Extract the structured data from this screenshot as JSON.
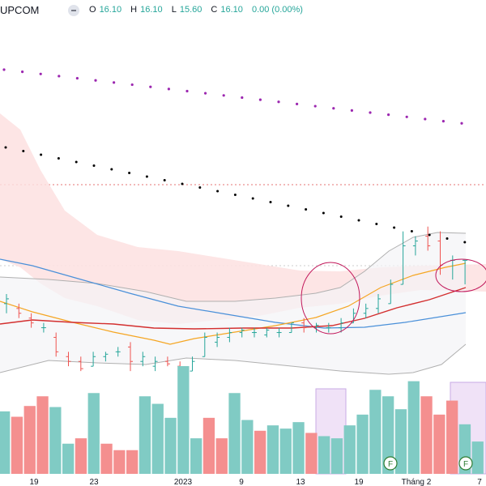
{
  "header": {
    "exchange": "UPCOM",
    "open_label": "O",
    "open": "16.10",
    "high_label": "H",
    "high": "16.10",
    "low_label": "L",
    "low": "15.60",
    "close_label": "C",
    "close": "16.10",
    "change": "0.00 (0.00%)"
  },
  "colors": {
    "up": "#26a69a",
    "down": "#ef5350",
    "vol_up": "#80cbc4",
    "vol_down": "#f48f8f",
    "purple_dots": "#9c27b0",
    "black_dots": "#000000",
    "blue_ma": "#4a90d9",
    "orange_ma": "#f5a623",
    "red_ma": "#d32f2f",
    "cloud": "#fde0e0",
    "band": "#b0b0b0",
    "highlight": "#ead7f5",
    "circle": "#c2185b",
    "marker": "#2e7d32"
  },
  "chart_data": {
    "type": "candlestick",
    "x_labels": [
      "19",
      "23",
      "2023",
      "9",
      "13",
      "19",
      "Tháng 2",
      "7"
    ],
    "marker_labels": [
      "F",
      "F"
    ],
    "y_range": [
      13.6,
      21.0
    ],
    "candles": [
      {
        "o": 15.2,
        "h": 15.4,
        "l": 15.0,
        "c": 15.3
      },
      {
        "o": 15.1,
        "h": 15.2,
        "l": 14.9,
        "c": 15.0
      },
      {
        "o": 14.9,
        "h": 15.0,
        "l": 14.7,
        "c": 14.8
      },
      {
        "o": 14.7,
        "h": 14.8,
        "l": 14.6,
        "c": 14.7
      },
      {
        "o": 14.5,
        "h": 14.6,
        "l": 14.1,
        "c": 14.2
      },
      {
        "o": 14.1,
        "h": 14.2,
        "l": 13.9,
        "c": 14.0
      },
      {
        "o": 14.0,
        "h": 14.1,
        "l": 13.8,
        "c": 13.85
      },
      {
        "o": 13.9,
        "h": 14.2,
        "l": 13.9,
        "c": 14.1
      },
      {
        "o": 14.1,
        "h": 14.2,
        "l": 14.0,
        "c": 14.15
      },
      {
        "o": 14.2,
        "h": 14.3,
        "l": 14.1,
        "c": 14.2
      },
      {
        "o": 14.3,
        "h": 14.4,
        "l": 13.8,
        "c": 14.0
      },
      {
        "o": 14.0,
        "h": 14.2,
        "l": 13.9,
        "c": 14.1
      },
      {
        "o": 13.9,
        "h": 14.1,
        "l": 13.8,
        "c": 14.0
      },
      {
        "o": 14.0,
        "h": 14.1,
        "l": 13.9,
        "c": 13.95
      },
      {
        "o": 13.9,
        "h": 14.0,
        "l": 13.8,
        "c": 13.85
      },
      {
        "o": 13.8,
        "h": 14.1,
        "l": 13.8,
        "c": 14.0
      },
      {
        "o": 14.1,
        "h": 14.6,
        "l": 14.1,
        "c": 14.5
      },
      {
        "o": 14.4,
        "h": 14.6,
        "l": 14.3,
        "c": 14.5
      },
      {
        "o": 14.5,
        "h": 14.7,
        "l": 14.4,
        "c": 14.6
      },
      {
        "o": 14.6,
        "h": 14.7,
        "l": 14.5,
        "c": 14.65
      },
      {
        "o": 14.6,
        "h": 14.7,
        "l": 14.5,
        "c": 14.6
      },
      {
        "o": 14.55,
        "h": 14.7,
        "l": 14.5,
        "c": 14.65
      },
      {
        "o": 14.6,
        "h": 14.7,
        "l": 14.5,
        "c": 14.6
      },
      {
        "o": 14.6,
        "h": 14.8,
        "l": 14.6,
        "c": 14.8
      },
      {
        "o": 14.8,
        "h": 14.9,
        "l": 14.6,
        "c": 14.7
      },
      {
        "o": 14.7,
        "h": 14.8,
        "l": 14.6,
        "c": 14.75
      },
      {
        "o": 14.7,
        "h": 14.8,
        "l": 14.6,
        "c": 14.7
      },
      {
        "o": 14.7,
        "h": 14.9,
        "l": 14.6,
        "c": 14.8
      },
      {
        "o": 14.8,
        "h": 15.1,
        "l": 14.8,
        "c": 15.0
      },
      {
        "o": 15.0,
        "h": 15.2,
        "l": 14.9,
        "c": 15.1
      },
      {
        "o": 15.1,
        "h": 15.4,
        "l": 15.0,
        "c": 15.3
      },
      {
        "o": 15.2,
        "h": 15.7,
        "l": 15.2,
        "c": 15.6
      },
      {
        "o": 15.6,
        "h": 16.7,
        "l": 15.6,
        "c": 16.4
      },
      {
        "o": 16.4,
        "h": 16.6,
        "l": 16.2,
        "c": 16.5
      },
      {
        "o": 16.6,
        "h": 16.8,
        "l": 16.3,
        "c": 16.4
      },
      {
        "o": 16.5,
        "h": 16.7,
        "l": 15.8,
        "c": 16.0
      },
      {
        "o": 16.1,
        "h": 16.2,
        "l": 15.7,
        "c": 16.1
      },
      {
        "o": 16.1,
        "h": 16.1,
        "l": 15.6,
        "c": 16.1
      }
    ],
    "volume": [
      {
        "v": 0.58,
        "up": true
      },
      {
        "v": 0.53,
        "up": false
      },
      {
        "v": 0.63,
        "up": false
      },
      {
        "v": 0.72,
        "up": false
      },
      {
        "v": 0.62,
        "up": true
      },
      {
        "v": 0.28,
        "up": true
      },
      {
        "v": 0.33,
        "up": false
      },
      {
        "v": 0.75,
        "up": true
      },
      {
        "v": 0.28,
        "up": false
      },
      {
        "v": 0.22,
        "up": false
      },
      {
        "v": 0.22,
        "up": false
      },
      {
        "v": 0.72,
        "up": true
      },
      {
        "v": 0.65,
        "up": true
      },
      {
        "v": 0.52,
        "up": true
      },
      {
        "v": 1.0,
        "up": true
      },
      {
        "v": 0.33,
        "up": true
      },
      {
        "v": 0.52,
        "up": false
      },
      {
        "v": 0.33,
        "up": false
      },
      {
        "v": 0.75,
        "up": true
      },
      {
        "v": 0.5,
        "up": true
      },
      {
        "v": 0.4,
        "up": false
      },
      {
        "v": 0.45,
        "up": true
      },
      {
        "v": 0.42,
        "up": true
      },
      {
        "v": 0.48,
        "up": true
      },
      {
        "v": 0.38,
        "up": false
      },
      {
        "v": 0.35,
        "up": true
      },
      {
        "v": 0.33,
        "up": true
      },
      {
        "v": 0.45,
        "up": true
      },
      {
        "v": 0.55,
        "up": true
      },
      {
        "v": 0.78,
        "up": true
      },
      {
        "v": 0.72,
        "up": true
      },
      {
        "v": 0.6,
        "up": true
      },
      {
        "v": 0.86,
        "up": true
      },
      {
        "v": 0.72,
        "up": false
      },
      {
        "v": 0.55,
        "up": false
      },
      {
        "v": 0.68,
        "up": false
      },
      {
        "v": 0.46,
        "up": true
      },
      {
        "v": 0.3,
        "up": true
      }
    ]
  }
}
